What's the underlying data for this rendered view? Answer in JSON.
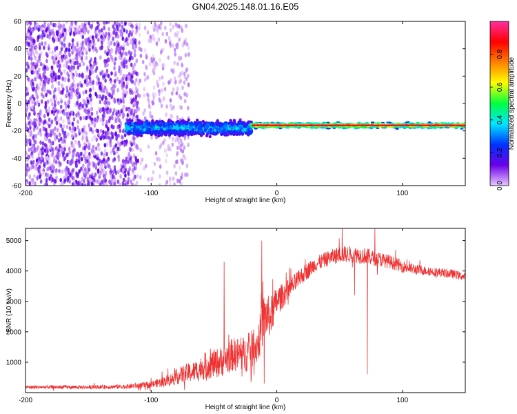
{
  "title": "GN04.2025.148.01.16.E05",
  "chart_data": [
    {
      "type": "heatmap",
      "xlabel": "Height of straight line (km)",
      "ylabel": "Frequency (Hz)",
      "xlim": [
        -200,
        150
      ],
      "ylim": [
        -60,
        60
      ],
      "xticks": [
        -200,
        -100,
        0,
        100
      ],
      "yticks": [
        -60,
        -40,
        -20,
        0,
        20,
        40,
        60
      ],
      "colorbar": {
        "label": "Normalized spectral amplitude",
        "range": [
          0,
          1
        ],
        "ticks": [
          0.0,
          0.2,
          0.4,
          0.6,
          0.8
        ],
        "colormap": [
          "#e8c8ff",
          "#6a00e8",
          "#0033ff",
          "#00e5ff",
          "#00ff40",
          "#ffff00",
          "#ff8000",
          "#ff0000",
          "#ff2fa0"
        ]
      },
      "noise_region": {
        "x": [
          -200,
          -70
        ],
        "density": "high",
        "dense_edge_x": -110,
        "faint_column_x": [
          -85,
          -70
        ]
      },
      "bands": [
        {
          "x": [
            -120,
            -20
          ],
          "center_freq": -18,
          "width_hz": 10,
          "peak_amplitude": 0.5
        },
        {
          "x": [
            -20,
            150
          ],
          "center_freq": -16,
          "width_hz": 4,
          "peak_amplitude": 0.9
        }
      ]
    },
    {
      "type": "line",
      "xlabel": "Height of straight line (km)",
      "ylabel": "SNR (10 * v/v)",
      "xlim": [
        -200,
        150
      ],
      "ylim": [
        0,
        5400
      ],
      "xticks": [
        -200,
        -100,
        0,
        100
      ],
      "yticks": [
        1000,
        2000,
        3000,
        4000,
        5000
      ],
      "series": [
        {
          "color": "#ee3333",
          "envelope": {
            "x": [
              -200,
              -150,
              -120,
              -100,
              -85,
              -75,
              -65,
              -55,
              -45,
              -35,
              -25,
              -15,
              -10,
              -5,
              0,
              5,
              10,
              20,
              30,
              40,
              50,
              60,
              70,
              80,
              90,
              100,
              110,
              120,
              130,
              140,
              150
            ],
            "mean": [
              180,
              180,
              200,
              260,
              420,
              600,
              700,
              900,
              1000,
              1250,
              1250,
              1600,
              2500,
              2500,
              3000,
              3200,
              3400,
              3850,
              4200,
              4400,
              4550,
              4550,
              4500,
              4400,
              4300,
              4150,
              4050,
              4000,
              3950,
              3900,
              3800
            ],
            "spread": [
              120,
              120,
              150,
              220,
              400,
              600,
              700,
              900,
              1000,
              1100,
              1200,
              1300,
              1600,
              1300,
              1000,
              800,
              700,
              600,
              500,
              500,
              550,
              550,
              550,
              500,
              450,
              400,
              350,
              300,
              300,
              300,
              250
            ]
          },
          "dips": [
            {
              "x": -10,
              "y": 300
            },
            {
              "x": 72,
              "y": 600
            },
            {
              "x": 62,
              "y": 3200
            }
          ],
          "peaks": [
            {
              "x": -42,
              "y": 4300
            },
            {
              "x": -12,
              "y": 5000
            },
            {
              "x": 52,
              "y": 5400
            },
            {
              "x": 78,
              "y": 5400
            }
          ]
        }
      ]
    }
  ]
}
